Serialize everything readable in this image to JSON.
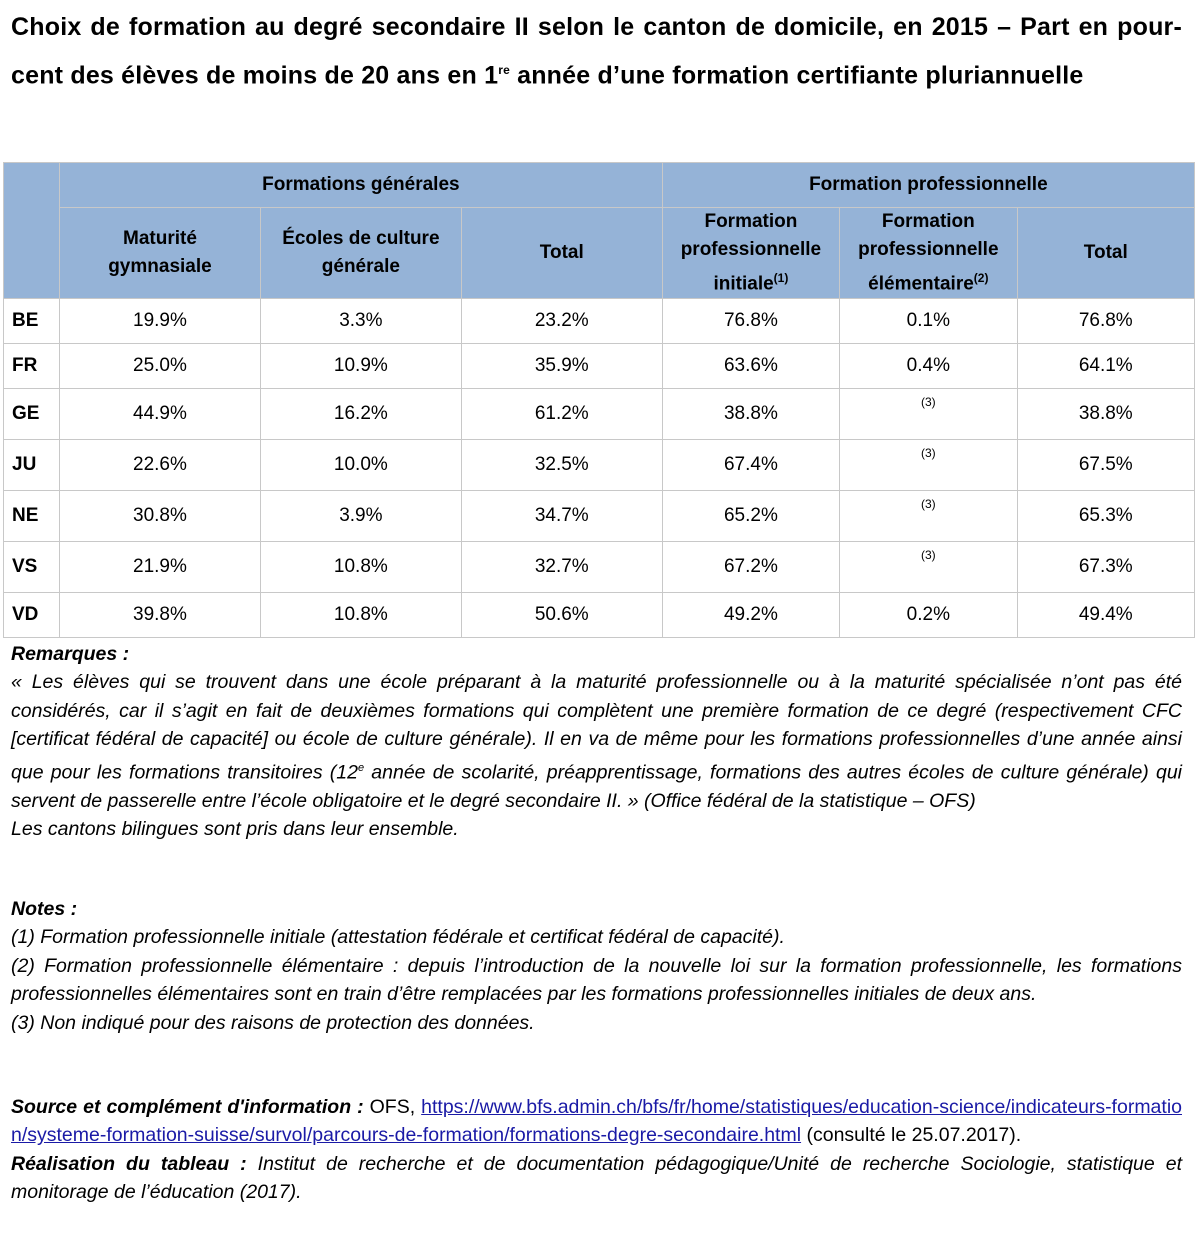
{
  "title": {
    "part1": "Choix de formation au degré secondaire II selon le canton de domicile, en 2015 – Part en pour-cent des élèves de moins de 20 ans en 1",
    "sup": "re",
    "part2": " année d’une formation certifiante pluriannuelle"
  },
  "table": {
    "groups": [
      "Formations générales",
      "Formation professionnelle"
    ],
    "columns": [
      {
        "label": "Maturité gymnasiale"
      },
      {
        "label": "Écoles de culture générale"
      },
      {
        "label": "Total"
      },
      {
        "label": "Formation professionnelle initiale",
        "sup": "(1)"
      },
      {
        "label": "Formation professionnelle élémentaire",
        "sup": "(2)"
      },
      {
        "label": "Total"
      }
    ],
    "rows": [
      {
        "canton": "BE",
        "values": [
          "19.9%",
          "3.3%",
          "23.2%",
          "76.8%",
          "0.1%",
          "76.8%"
        ]
      },
      {
        "canton": "FR",
        "values": [
          "25.0%",
          "10.9%",
          "35.9%",
          "63.6%",
          "0.4%",
          "64.1%"
        ]
      },
      {
        "canton": "GE",
        "values": [
          "44.9%",
          "16.2%",
          "61.2%",
          "38.8%",
          "(3)",
          "38.8%"
        ]
      },
      {
        "canton": "JU",
        "values": [
          "22.6%",
          "10.0%",
          "32.5%",
          "67.4%",
          "(3)",
          "67.5%"
        ]
      },
      {
        "canton": "NE",
        "values": [
          "30.8%",
          "3.9%",
          "34.7%",
          "65.2%",
          "(3)",
          "65.3%"
        ]
      },
      {
        "canton": "VS",
        "values": [
          "21.9%",
          "10.8%",
          "32.7%",
          "67.2%",
          "(3)",
          "67.3%"
        ]
      },
      {
        "canton": "VD",
        "values": [
          "39.8%",
          "10.8%",
          "50.6%",
          "49.2%",
          "0.2%",
          "49.4%"
        ]
      }
    ]
  },
  "remarks": {
    "heading": "Remarques :",
    "text1": "« Les élèves qui se trouvent dans une école préparant à la maturité professionnelle ou à la maturité spécialisée n’ont pas été considérés, car il s’agit en fait de deuxièmes formations qui complètent une première formation de ce degré (respectivement CFC [certificat fédéral de capacité] ou école de culture générale). Il en va de même pour les formations professionnelles d’une année ainsi que pour les formations transitoires (12",
    "sup": "e",
    "text2": " année de scolarité, préapprentissage, formations des autres écoles de culture générale) qui servent de passerelle entre l’école obligatoire et le degré secondaire II. » (Office fédéral de la statistique – OFS)",
    "text3": "Les cantons bilingues sont pris dans leur ensemble."
  },
  "notes": {
    "heading": "Notes :",
    "items": [
      "(1) Formation professionnelle initiale (attestation fédérale et certificat fédéral de capacité).",
      "(2) Formation professionnelle élémentaire : depuis l’introduction de la nouvelle loi sur la formation professionnelle, les formations professionnelles élémentaires sont en train d’être remplacées par les formations professionnelles initiales de deux ans.",
      "(3) Non indiqué pour des raisons de protection des données."
    ]
  },
  "source": {
    "label": "Source et complément d'information :",
    "org": " OFS, ",
    "url": "https://www.bfs.admin.ch/bfs/fr/home/statistiques/education-science/indicateurs-formation/systeme-formation-suisse/survol/parcours-de-formation/formations-degre-secondaire.html",
    "consulted": " (consulté le 25.07.2017).",
    "realisation_label": "Réalisation du tableau :",
    "realisation_text": " Institut de recherche et de documentation pédagogique/Unité de recherche Sociologie, statistique et monitorage de l’éducation (2017)."
  }
}
